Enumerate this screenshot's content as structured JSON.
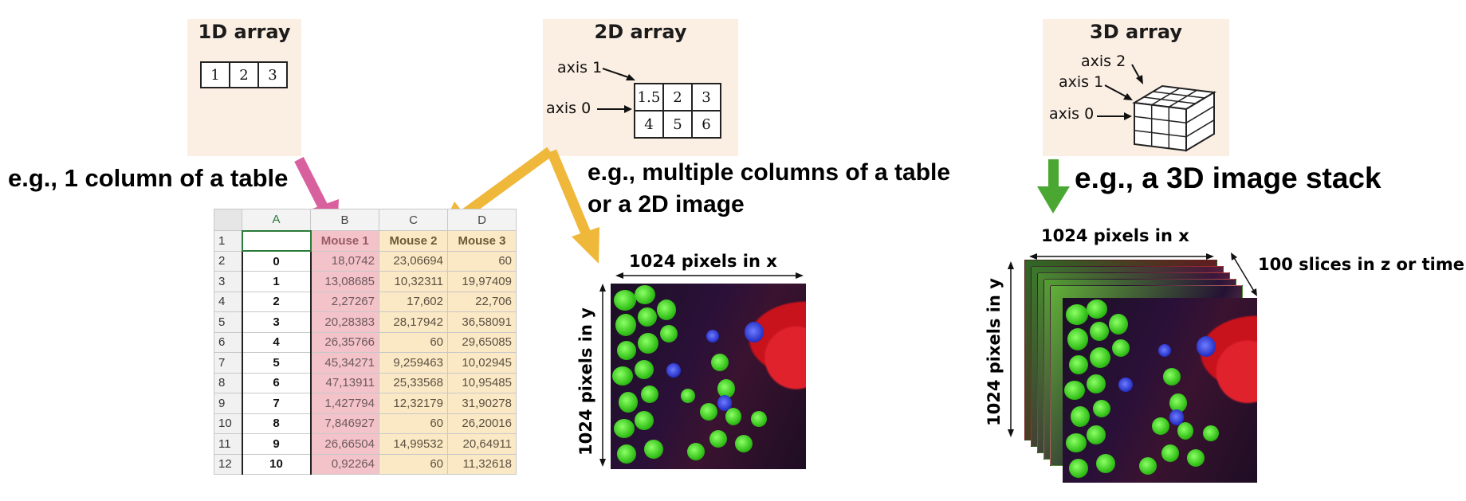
{
  "panels": {
    "one_d": {
      "title": "1D array",
      "values": [
        "1",
        "2",
        "3"
      ]
    },
    "two_d": {
      "title": "2D array",
      "axis1": "axis 1",
      "axis0": "axis 0",
      "row1": [
        "1.5",
        "2",
        "3"
      ],
      "row2": [
        "4",
        "5",
        "6"
      ]
    },
    "three_d": {
      "title": "3D array",
      "axis2": "axis 2",
      "axis1": "axis 1",
      "axis0": "axis 0"
    }
  },
  "captions": {
    "one_d": "e.g., 1 column of a table",
    "two_d_line1": "e.g., multiple columns of a table",
    "two_d_line2": "or a 2D image",
    "three_d": "e.g., a 3D image stack"
  },
  "image_labels": {
    "x_2d": "1024 pixels in x",
    "y_2d": "1024 pixels in y",
    "x_3d": "1024 pixels in x",
    "y_3d": "1024 pixels in y",
    "z_3d": "100 slices in z or time"
  },
  "spreadsheet": {
    "col_headers": [
      "A",
      "B",
      "C",
      "D"
    ],
    "row_numbers": [
      "1",
      "2",
      "3",
      "4",
      "5",
      "6",
      "7",
      "8",
      "9",
      "10",
      "11",
      "12"
    ],
    "header_row": [
      "",
      "Mouse 1",
      "Mouse 2",
      "Mouse 3"
    ],
    "rows": [
      [
        "0",
        "18,0742",
        "23,06694",
        "60"
      ],
      [
        "1",
        "13,08685",
        "10,32311",
        "19,97409"
      ],
      [
        "2",
        "2,27267",
        "17,602",
        "22,706"
      ],
      [
        "3",
        "20,28383",
        "28,17942",
        "36,58091"
      ],
      [
        "4",
        "26,35766",
        "60",
        "29,65085"
      ],
      [
        "5",
        "45,34271",
        "9,259463",
        "10,02945"
      ],
      [
        "6",
        "47,13911",
        "25,33568",
        "10,95485"
      ],
      [
        "7",
        "1,427794",
        "12,32179",
        "31,90278"
      ],
      [
        "8",
        "7,846927",
        "60",
        "26,20016"
      ],
      [
        "9",
        "26,66504",
        "14,99532",
        "20,64911"
      ],
      [
        "10",
        "0,92264",
        "60",
        "11,32618"
      ]
    ]
  },
  "colors": {
    "panel_bg": "#fbeee3",
    "pink_arrow": "#d9609e",
    "orange_arrow": "#efb83a",
    "green_arrow": "#4aa832",
    "highlight_pink": "#f3c3c9",
    "highlight_orange": "#fbe9c6"
  }
}
